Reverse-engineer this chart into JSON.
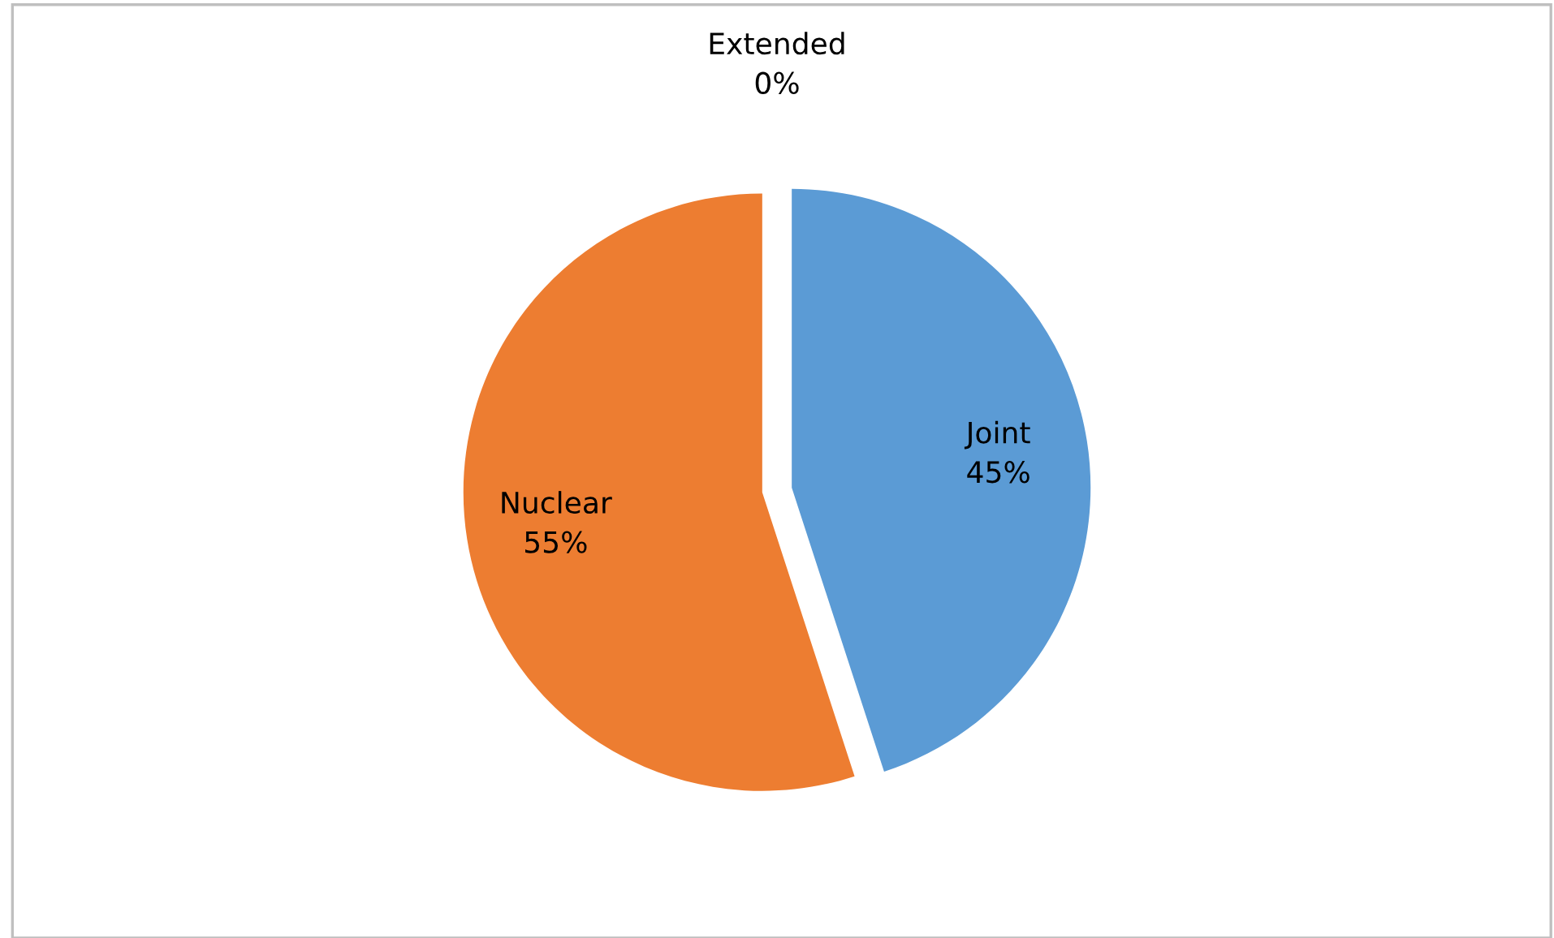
{
  "chart_data": {
    "type": "pie",
    "categories": [
      "Joint",
      "Nuclear",
      "Extended"
    ],
    "values": [
      45,
      55,
      0
    ],
    "colors": [
      "#5b9bd5",
      "#ed7d31",
      "#a5a5a5"
    ],
    "value_labels": [
      "45%",
      "55%",
      "0%"
    ],
    "legend": false
  }
}
